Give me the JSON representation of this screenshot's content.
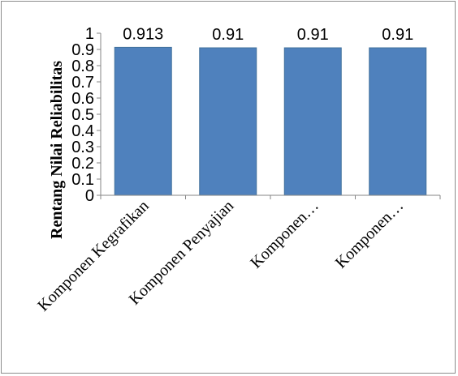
{
  "chart_data": {
    "type": "bar",
    "title": "",
    "xlabel": "",
    "ylabel": "Rentang Nilai Reliabilitas",
    "categories": [
      "Komponen Kegrafikan",
      "Komponen Penyajian",
      "Komponen…",
      "Komponen…"
    ],
    "values": [
      0.913,
      0.91,
      0.91,
      0.91
    ],
    "data_labels": [
      "0.913",
      "0.91",
      "0.91",
      "0.91"
    ],
    "ylim": [
      0,
      1
    ],
    "yticks": [
      "0",
      "0.1",
      "0.2",
      "0.3",
      "0.4",
      "0.5",
      "0.6",
      "0.7",
      "0.8",
      "0.9",
      "1"
    ],
    "grid": false,
    "legend": "none",
    "bar_color": "#4f81bd",
    "bar_edge_color": "#41719c"
  }
}
